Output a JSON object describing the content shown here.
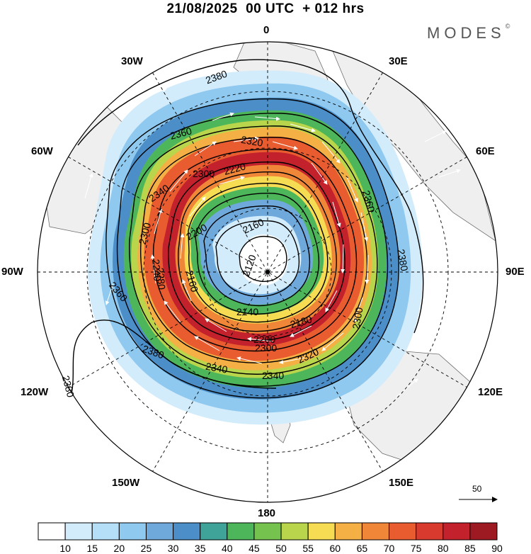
{
  "title": "21/08/2025  00 UTC  + 012 hrs",
  "brand": "MODES",
  "brand_mark": "©",
  "longitude_labels": {
    "lon0": "0",
    "lon30e": "30E",
    "lon60e": "60E",
    "lon90e": "90E",
    "lon120e": "120E",
    "lon150e": "150E",
    "lon180": "180",
    "lon150w": "150W",
    "lon120w": "120W",
    "lon90w": "90W",
    "lon60w": "60W",
    "lon30w": "30W"
  },
  "contour_labels": [
    "2380",
    "2380",
    "2380",
    "2360",
    "2360",
    "2360",
    "2340",
    "2340",
    "2340",
    "2320",
    "2320",
    "2300",
    "2300",
    "2300",
    "2300",
    "2280",
    "2220",
    "2200",
    "2200",
    "2180",
    "2160",
    "2160",
    "2140",
    "2120",
    "2240",
    "2380"
  ],
  "vector_reference": {
    "label": "50",
    "icon": "arrow-right-icon"
  },
  "colorbar": {
    "ticks": [
      "10",
      "15",
      "20",
      "25",
      "30",
      "35",
      "40",
      "45",
      "50",
      "55",
      "60",
      "65",
      "70",
      "75",
      "80",
      "85",
      "90"
    ],
    "colors": [
      "#ffffff",
      "#d3ecfb",
      "#b5dff7",
      "#8fc9ef",
      "#6fa9dc",
      "#4b8ec8",
      "#3fa39a",
      "#4db55a",
      "#76c24f",
      "#b9d54b",
      "#f6dc52",
      "#f4b045",
      "#ef8638",
      "#e85c30",
      "#d83a2d",
      "#c3212b",
      "#9e1a22"
    ]
  }
}
